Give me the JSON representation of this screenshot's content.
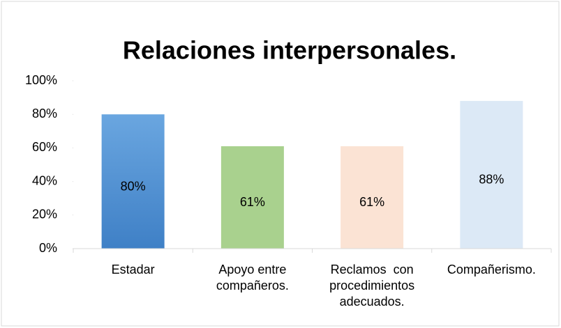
{
  "chart_data": {
    "type": "bar",
    "title": "Relaciones interpersonales.",
    "categories": [
      "Estadar",
      "Apoyo entre compañeros.",
      "Reclamos  con procedimientos adecuados.",
      "Compañerismo."
    ],
    "values": [
      80,
      61,
      61,
      88
    ],
    "value_labels": [
      "80%",
      "61%",
      "61%",
      "88%"
    ],
    "colors": [
      "#4f8fd2",
      "#a9d18e",
      "#fbe3d4",
      "#dce9f6"
    ],
    "ylim": [
      0,
      100
    ],
    "yticks": [
      {
        "value": 0,
        "label": "0%"
      },
      {
        "value": 20,
        "label": "20%"
      },
      {
        "value": 40,
        "label": "40%"
      },
      {
        "value": 60,
        "label": "60%"
      },
      {
        "value": 80,
        "label": "80%"
      },
      {
        "value": 100,
        "label": "100%"
      }
    ]
  }
}
